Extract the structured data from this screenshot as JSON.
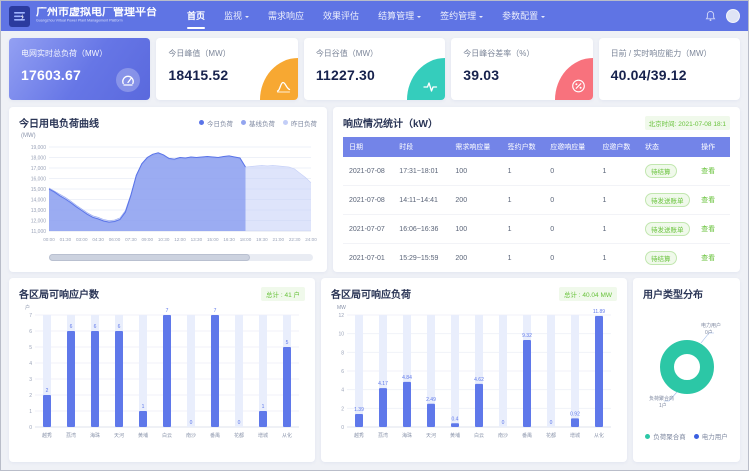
{
  "header": {
    "title": "广州市虚拟电厂管理平台",
    "subtitle": "Guangzhou Virtual Power Plant Management Platform",
    "nav": [
      {
        "name": "home",
        "label": "首页",
        "active": true,
        "dropdown": false
      },
      {
        "name": "monitoring",
        "label": "监视",
        "active": false,
        "dropdown": true
      },
      {
        "name": "demand-response",
        "label": "需求响应",
        "active": false,
        "dropdown": false
      },
      {
        "name": "effect-evaluation",
        "label": "效果评估",
        "active": false,
        "dropdown": false
      },
      {
        "name": "settlement",
        "label": "结算管理",
        "active": false,
        "dropdown": true
      },
      {
        "name": "contract",
        "label": "签约管理",
        "active": false,
        "dropdown": true
      },
      {
        "name": "parameters",
        "label": "参数配置",
        "active": false,
        "dropdown": true
      }
    ]
  },
  "kpi_cards": [
    {
      "label": "电网实时总负荷（MW）",
      "value": "17603.67",
      "icon": "gauge-icon",
      "accent": "#6272e2"
    },
    {
      "label": "今日峰值（MW）",
      "value": "18415.52",
      "icon": "peak-curve-icon",
      "accent": "#f7a832"
    },
    {
      "label": "今日谷值（MW）",
      "value": "11227.30",
      "icon": "pulse-icon",
      "accent": "#35cdbc"
    },
    {
      "label": "今日峰谷差率（%）",
      "value": "39.03",
      "icon": "percent-icon",
      "accent": "#f8727d"
    },
    {
      "label": "日前 / 实时响应能力（MW）",
      "value": "40.04/39.12",
      "icon": "",
      "accent": ""
    }
  ],
  "response_table": {
    "title": "响应情况统计（kW）",
    "timestamp": "北京时间: 2021-07-08 18:1",
    "columns": [
      "日期",
      "时段",
      "需求响应量",
      "签约户数",
      "应邀响应量",
      "应邀户数",
      "状态",
      "操作"
    ],
    "action_label": "查看",
    "rows": [
      {
        "date": "2021-07-08",
        "period": "17:31~18:01",
        "demand": "100",
        "signed": "1",
        "invited_amount": "0",
        "invited_count": "1",
        "status": "待结算"
      },
      {
        "date": "2021-07-08",
        "period": "14:11~14:41",
        "demand": "200",
        "signed": "1",
        "invited_amount": "0",
        "invited_count": "1",
        "status": "待发送账单"
      },
      {
        "date": "2021-07-07",
        "period": "16:06~16:36",
        "demand": "100",
        "signed": "1",
        "invited_amount": "0",
        "invited_count": "1",
        "status": "待发送账单"
      },
      {
        "date": "2021-07-01",
        "period": "15:29~15:59",
        "demand": "200",
        "signed": "1",
        "invited_amount": "0",
        "invited_count": "1",
        "status": "待结算"
      }
    ]
  },
  "chart_data": [
    {
      "type": "area",
      "title": "今日用电负荷曲线",
      "ylabel": "(MW)",
      "ylim": [
        11000,
        19000
      ],
      "yticks": [
        11000,
        12000,
        13000,
        14000,
        15000,
        16000,
        17000,
        18000,
        19000
      ],
      "xticks": [
        "00:00",
        "01:30",
        "03:00",
        "04:30",
        "06:00",
        "07:30",
        "09:00",
        "10:30",
        "12:00",
        "13:30",
        "15:00",
        "16:30",
        "18:00",
        "19:30",
        "21:00",
        "22:30",
        "24:00"
      ],
      "x_interval_minutes": 30,
      "grid": true,
      "legend_position": "top-right",
      "series": [
        {
          "name": "今日负荷",
          "color": "#5a74e8",
          "fill": "rgba(122,143,238,0.55)",
          "values": [
            15000,
            14700,
            14350,
            14050,
            13700,
            13300,
            12950,
            12600,
            12300,
            12150,
            11950,
            11850,
            11900,
            12100,
            12800,
            14400,
            16300,
            17400,
            18000,
            18300,
            18450,
            18250,
            17900,
            17850,
            18000,
            17950,
            18050,
            18000,
            18050,
            18100,
            18050,
            18000,
            18100,
            18150,
            18050,
            17950,
            17100
          ]
        },
        {
          "name": "基线负荷",
          "color": "#93a5ef",
          "fill": "rgba(147,165,239,0.35)",
          "values": [
            15100,
            14800,
            14500,
            14200,
            13850,
            13450,
            13100,
            12750,
            12450,
            12300,
            12100,
            12000,
            12050,
            12250,
            12950,
            14500,
            16350,
            17420,
            18020,
            18310,
            18430,
            18230,
            17920,
            17860,
            17990,
            17960,
            18040,
            18010,
            18040,
            18090,
            18040,
            18010,
            18090,
            18140,
            18040,
            17940,
            17090
          ]
        },
        {
          "name": "昨日负荷",
          "color": "#c3cef7",
          "fill": "rgba(195,206,247,0.55)",
          "values": [
            14900,
            14600,
            14250,
            13950,
            13600,
            13250,
            12900,
            12550,
            12250,
            12100,
            11900,
            11800,
            11850,
            12050,
            12750,
            14300,
            16150,
            17300,
            17900,
            18200,
            18350,
            18150,
            17800,
            17750,
            17900,
            17850,
            17950,
            17900,
            17950,
            18000,
            17950,
            17900,
            18000,
            18050,
            17950,
            17850,
            17100,
            17150,
            17200,
            17250,
            17200,
            17250,
            17200,
            17150,
            17100,
            16900,
            16500,
            16100,
            15600
          ]
        }
      ]
    },
    {
      "type": "bar",
      "title": "各区局可响应户数",
      "badge": "总计 : 41 户",
      "ylabel": "户",
      "ylim": [
        0,
        7
      ],
      "yticks": [
        0,
        1,
        2,
        3,
        4,
        5,
        6,
        7
      ],
      "grid": true,
      "bar_color": "#5f78ea",
      "categories": [
        "越秀",
        "荔湾",
        "海珠",
        "天河",
        "黄埔",
        "白云",
        "南沙",
        "番禺",
        "花都",
        "增城",
        "从化"
      ],
      "values": [
        2,
        6,
        6,
        6,
        1,
        7,
        0,
        7,
        0,
        1,
        5
      ]
    },
    {
      "type": "bar",
      "title": "各区局可响应负荷",
      "badge": "总计 : 40.04 MW",
      "ylabel": "MW",
      "ylim": [
        0,
        12
      ],
      "yticks": [
        0,
        2,
        4,
        6,
        8,
        10,
        12
      ],
      "grid": true,
      "bar_color": "#5f78ea",
      "categories": [
        "越秀",
        "荔湾",
        "海珠",
        "天河",
        "黄埔",
        "白云",
        "南沙",
        "番禺",
        "花都",
        "增城",
        "从化"
      ],
      "values": [
        1.39,
        4.17,
        4.84,
        2.49,
        0.4,
        4.62,
        0,
        9.32,
        0,
        0.92,
        11.89
      ]
    },
    {
      "type": "pie",
      "title": "用户类型分布",
      "slices": [
        {
          "label": "负荷聚合商",
          "value": 1,
          "count_label": "1户",
          "color": "#2cc7a6"
        },
        {
          "label": "电力用户",
          "value": 0,
          "count_label": "0户",
          "color": "#3a5fe0"
        }
      ]
    }
  ]
}
